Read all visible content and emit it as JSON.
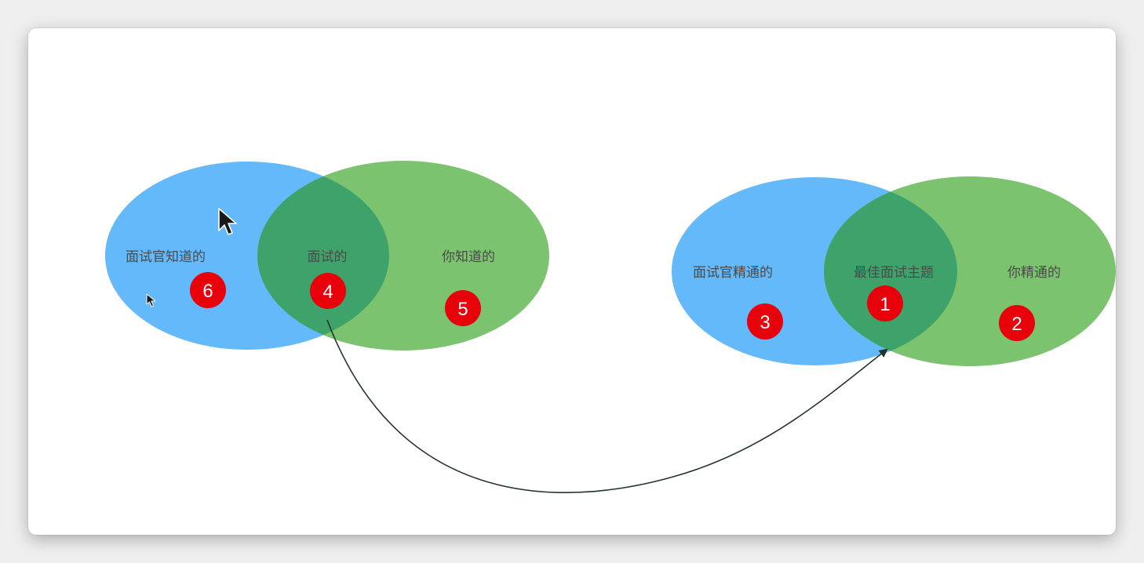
{
  "colors": {
    "blue": "#64b9fb",
    "green": "#7cc36f",
    "overlap": "#3da36b",
    "badge": "#e8000b",
    "arrow": "#24332d"
  },
  "diagram_left": {
    "left_circle_label": "面试官知道的",
    "overlap_label": "面试的",
    "right_circle_label": "你知道的",
    "badge_left": "6",
    "badge_overlap": "4",
    "badge_right": "5"
  },
  "diagram_right": {
    "left_circle_label": "面试官精通的",
    "overlap_label": "最佳面试主题",
    "right_circle_label": "你精通的",
    "badge_left": "3",
    "badge_overlap": "1",
    "badge_right": "2"
  },
  "icons": [
    "mouse-cursor-icon"
  ]
}
